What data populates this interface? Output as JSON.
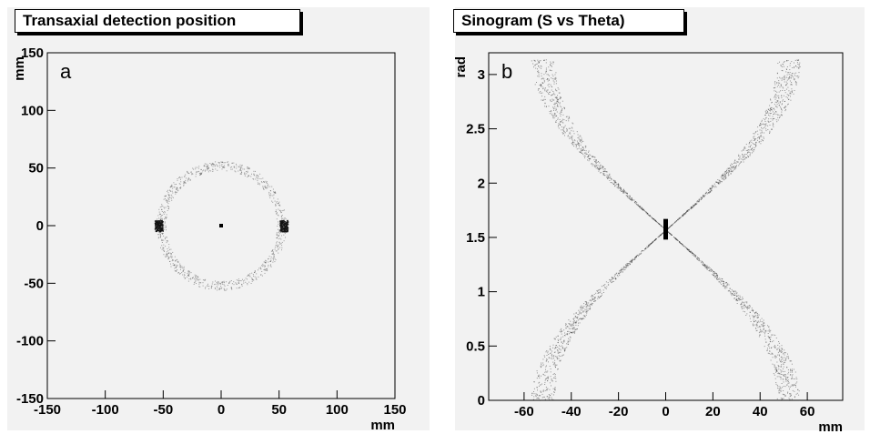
{
  "chart_data": [
    {
      "type": "scatter",
      "title": "Transaxial detection position",
      "panel_letter": "a",
      "xlabel": "mm",
      "ylabel": "mm",
      "xlim": [
        -150,
        150
      ],
      "ylim": [
        -150,
        150
      ],
      "xticks": [
        -150,
        -100,
        -50,
        0,
        50,
        100,
        150
      ],
      "yticks": [
        -150,
        -100,
        -50,
        0,
        50,
        100,
        150
      ],
      "grid": false,
      "series": [
        {
          "shape": "ring",
          "center": [
            0,
            0
          ],
          "radius_range": [
            48,
            56
          ],
          "point_count": 900,
          "color": "#333333"
        },
        {
          "shape": "cluster",
          "center": [
            -54,
            0
          ],
          "spread": [
            3.5,
            5
          ],
          "point_count": 260,
          "color": "#111111"
        },
        {
          "shape": "cluster",
          "center": [
            54,
            0
          ],
          "spread": [
            3.5,
            5
          ],
          "point_count": 260,
          "color": "#111111"
        },
        {
          "shape": "marker",
          "center": [
            0,
            0
          ],
          "color": "#000000"
        }
      ]
    },
    {
      "type": "scatter",
      "title": "Sinogram (S vs Theta)",
      "panel_letter": "b",
      "xlabel": "mm",
      "ylabel": "rad",
      "xlim": [
        -75,
        75
      ],
      "ylim": [
        0,
        3.2
      ],
      "xticks": [
        -60,
        -40,
        -20,
        0,
        20,
        40,
        60
      ],
      "yticks": [
        0,
        0.5,
        1,
        1.5,
        2,
        2.5,
        3
      ],
      "grid": false,
      "series": [
        {
          "shape": "sinusoid",
          "formula": "s = 52*cos(theta)",
          "band_width": 5,
          "point_count": 1400,
          "color": "#333333"
        },
        {
          "shape": "sinusoid",
          "formula": "s = -52*cos(theta)",
          "band_width": 5,
          "point_count": 1400,
          "color": "#333333"
        },
        {
          "shape": "band",
          "x": 0,
          "y_range": [
            1.48,
            1.67
          ],
          "color": "#000000"
        }
      ]
    }
  ]
}
